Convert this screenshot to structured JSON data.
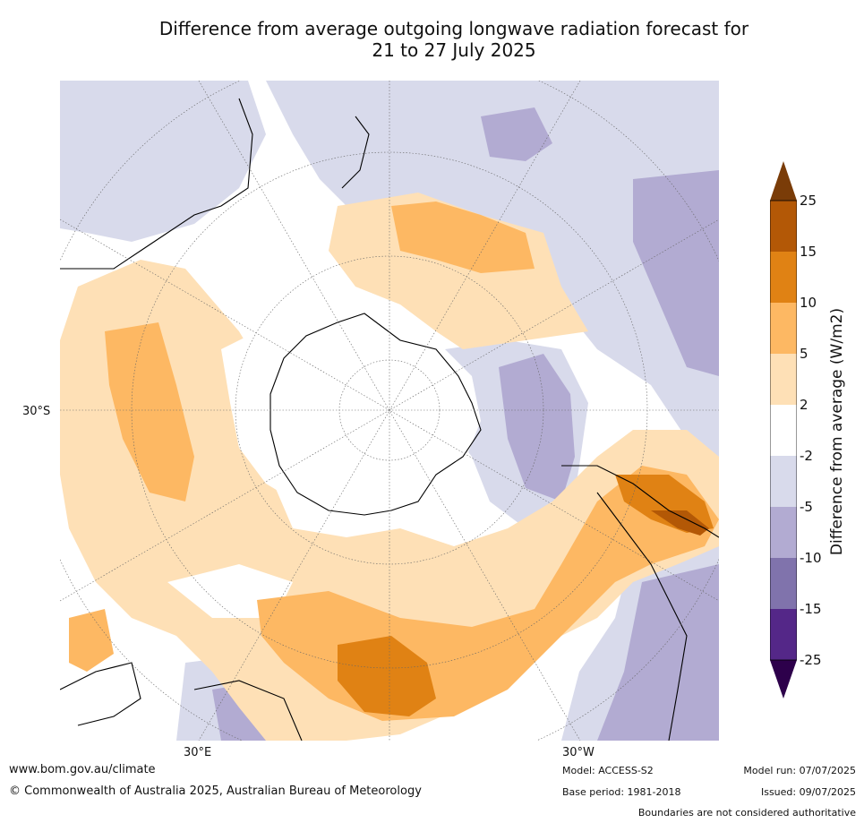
{
  "title_line1": "Difference from average outgoing longwave radiation forecast for",
  "title_line2": "21 to 27 July 2025",
  "map": {
    "lat_label": "30°S",
    "lon_labels": [
      "30°E",
      "30°W"
    ],
    "projection": "south-polar-stereographic"
  },
  "colorbar": {
    "label": "Difference from average (W/m2)",
    "ticks": [
      "25",
      "15",
      "10",
      "5",
      "2",
      "-2",
      "-5",
      "-10",
      "-15",
      "-25"
    ],
    "colors": {
      "gt25": "#7a3c08",
      "c15_25": "#b35806",
      "c10_15": "#e08214",
      "c5_10": "#fdb863",
      "c2_5": "#fee0b6",
      "cneutral": "#ffffff",
      "cm2_m5": "#d8daeb",
      "cm5_m10": "#b2abd2",
      "cm10_m15": "#8073ac",
      "cm15_m25": "#542788",
      "ltm25": "#2d004b"
    }
  },
  "footer": {
    "url": "www.bom.gov.au/climate",
    "copyright": "© Commonwealth of Australia 2025, Australian Bureau of Meteorology",
    "model": "Model: ACCESS-S2",
    "base_period": "Base period: 1981-2018",
    "model_run": "Model run: 07/07/2025",
    "issued": "Issued: 09/07/2025",
    "disclaimer": "Boundaries are not considered authoritative"
  }
}
